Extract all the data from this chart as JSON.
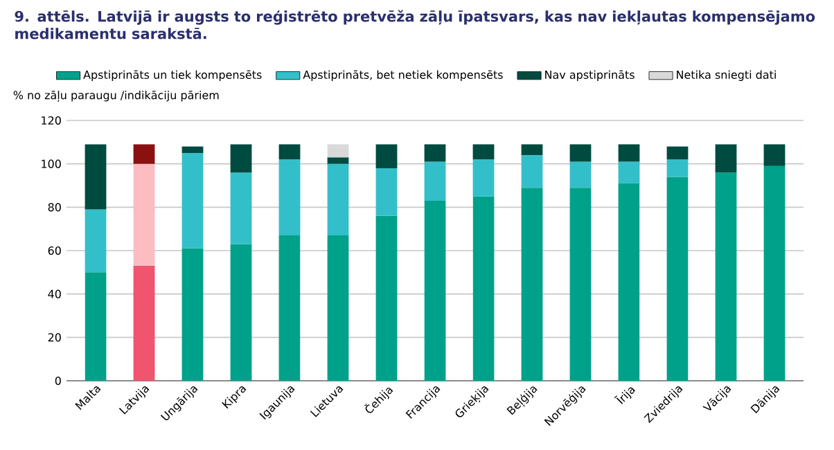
{
  "chart_data": {
    "type": "bar",
    "stacked": true,
    "title": "9. attēls. Latvijā ir augsts to reģistrēto pretvēža zāļu īpatsvars, kas nav iekļautas kompensējamo medikamentu sarakstā.",
    "ylabel": "% no zāļu paraugu /indikāciju pāriem",
    "categories": [
      "Malta",
      "Latvija",
      "Ungārija",
      "Kipra",
      "Igaunija",
      "Lietuva",
      "Čehija",
      "Francija",
      "Grieķija",
      "Beļģija",
      "Norvēģija",
      "Īrija",
      "Zviedrija",
      "Vācija",
      "Dānija"
    ],
    "series": [
      {
        "name": "Apstiprināts un tiek kompensēts",
        "color": "#00a18a",
        "colors": [
          "#00a18a",
          "#f0546f",
          "#00a18a",
          "#00a18a",
          "#00a18a",
          "#00a18a",
          "#00a18a",
          "#00a18a",
          "#00a18a",
          "#00a18a",
          "#00a18a",
          "#00a18a",
          "#00a18a",
          "#00a18a",
          "#00a18a"
        ],
        "values": [
          50,
          53,
          61,
          63,
          67,
          67,
          76,
          83,
          85,
          89,
          89,
          91,
          94,
          96,
          99
        ]
      },
      {
        "name": "Apstiprināts, bet netiek kompensēts",
        "color": "#33bfc9",
        "colors": [
          "#33bfc9",
          "#fbbcc2",
          "#33bfc9",
          "#33bfc9",
          "#33bfc9",
          "#33bfc9",
          "#33bfc9",
          "#33bfc9",
          "#33bfc9",
          "#33bfc9",
          "#33bfc9",
          "#33bfc9",
          "#33bfc9",
          "#33bfc9",
          "#33bfc9"
        ],
        "values": [
          29,
          47,
          44,
          33,
          35,
          33,
          22,
          18,
          17,
          15,
          12,
          10,
          8,
          0,
          0
        ]
      },
      {
        "name": "Nav apstiprināts",
        "color": "#004b40",
        "colors": [
          "#004b40",
          "#8b1010",
          "#004b40",
          "#004b40",
          "#004b40",
          "#004b40",
          "#004b40",
          "#004b40",
          "#004b40",
          "#004b40",
          "#004b40",
          "#004b40",
          "#004b40",
          "#004b40",
          "#004b40"
        ],
        "values": [
          30,
          9,
          3,
          13,
          7,
          3,
          11,
          8,
          7,
          5,
          8,
          8,
          6,
          13,
          10
        ]
      },
      {
        "name": "Netika sniegti dati",
        "color": "#d9d9d9",
        "values": [
          0,
          0,
          0,
          0,
          0,
          6,
          0,
          0,
          0,
          0,
          0,
          0,
          0,
          0,
          0
        ]
      }
    ],
    "ylim": [
      0,
      120
    ],
    "yticks": [
      0,
      20,
      40,
      60,
      80,
      100,
      120
    ],
    "grid": "y",
    "legend": "top"
  }
}
